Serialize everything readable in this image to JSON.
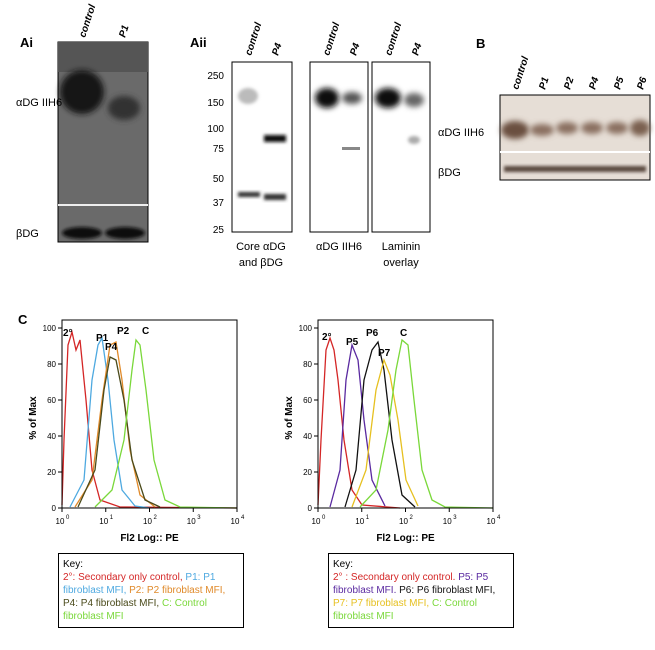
{
  "panel_ai": {
    "label": "Ai",
    "lanes": [
      "control",
      "P1"
    ],
    "rows": [
      "αDG IIH6",
      "βDG"
    ]
  },
  "panel_aii": {
    "label": "Aii",
    "markers": [
      250,
      150,
      100,
      75,
      50,
      37,
      25
    ],
    "blots": [
      {
        "lanes": [
          "control",
          "P4"
        ],
        "caption": [
          "Core αDG",
          "and βDG"
        ]
      },
      {
        "lanes": [
          "control",
          "P4"
        ],
        "caption": [
          "αDG IIH6"
        ]
      },
      {
        "lanes": [
          "control",
          "P4"
        ],
        "caption": [
          "Laminin",
          "overlay"
        ]
      }
    ]
  },
  "panel_b": {
    "label": "B",
    "lanes": [
      "control",
      "P1",
      "P2",
      "P4",
      "P5",
      "P6"
    ],
    "rows": [
      "αDG IIH6",
      "βDG"
    ]
  },
  "panel_c": {
    "label": "C",
    "histograms": [
      {
        "ylabel": "% of Max",
        "xlabel": "Fl2 Log:: PE",
        "yticks": [
          0,
          20,
          40,
          60,
          80,
          100
        ],
        "ylim": [
          0,
          100
        ],
        "xticks": [
          {
            "value": 1,
            "label": "10",
            "exp": "0"
          },
          {
            "value": 10,
            "label": "10",
            "exp": "1"
          },
          {
            "value": 100,
            "label": "10",
            "exp": "2"
          },
          {
            "value": 1000,
            "label": "10",
            "exp": "3"
          },
          {
            "value": 10000,
            "label": "10",
            "exp": "4"
          }
        ],
        "peaks": [
          {
            "text": "2°",
            "color": "#d42626"
          },
          {
            "text": "P1",
            "color": "#4ea9e0"
          },
          {
            "text": "P2",
            "color": "#e08a2a"
          },
          {
            "text": "P4",
            "color": "#4a4a1a"
          },
          {
            "text": "C",
            "color": "#7ad83a"
          }
        ],
        "key_title": "Key:",
        "key": [
          {
            "text": "2°: Secondary only control,",
            "color": "#d42626"
          },
          {
            "text": "P1: P1 fibroblast MFI,",
            "color": "#4ea9e0"
          },
          {
            "text": "P2: P2 fibroblast MFI,",
            "color": "#e08a2a"
          },
          {
            "text": "P4: P4 fibroblast MFI,",
            "color": "#4a4a1a"
          },
          {
            "text": "C: Control fibroblast MFI",
            "color": "#7ad83a"
          }
        ]
      },
      {
        "ylabel": "% of Max",
        "xlabel": "Fl2 Log:: PE",
        "yticks": [
          0,
          20,
          40,
          60,
          80,
          100
        ],
        "ylim": [
          0,
          100
        ],
        "xticks": [
          {
            "value": 1,
            "label": "10",
            "exp": "0"
          },
          {
            "value": 10,
            "label": "10",
            "exp": "1"
          },
          {
            "value": 100,
            "label": "10",
            "exp": "2"
          },
          {
            "value": 1000,
            "label": "10",
            "exp": "3"
          },
          {
            "value": 10000,
            "label": "10",
            "exp": "4"
          }
        ],
        "peaks": [
          {
            "text": "2°",
            "color": "#d42626"
          },
          {
            "text": "P5",
            "color": "#5a2aa0"
          },
          {
            "text": "P6",
            "color": "#111111"
          },
          {
            "text": "P7",
            "color": "#e6c020"
          },
          {
            "text": "C",
            "color": "#7ad83a"
          }
        ],
        "key_title": "Key:",
        "key": [
          {
            "text": "2° : Secondary only control.",
            "color": "#d42626"
          },
          {
            "text": "P5: P5 fibroblast MFI.",
            "color": "#5a2aa0"
          },
          {
            "text": "P6: P6 fibroblast MFI,",
            "color": "#111111"
          },
          {
            "text": "P7: P7 fibroblast MFI,",
            "color": "#e6c020"
          },
          {
            "text": "C: Control fibroblast MFI",
            "color": "#7ad83a"
          }
        ]
      }
    ]
  }
}
